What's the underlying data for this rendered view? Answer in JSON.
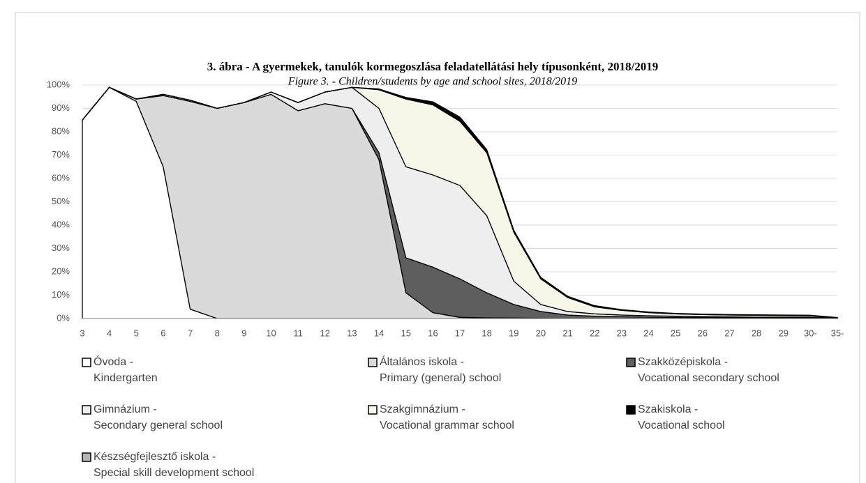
{
  "chart_data": {
    "type": "stacked_area",
    "title": "3. ábra - A gyermekek, tanulók kormegoszlása feladatellátási hely típusonként, 2018/2019",
    "subtitle": "Figure 3. - Children/students by age and school sites, 2018/2019",
    "categories": [
      "3",
      "4",
      "5",
      "6",
      "7",
      "8",
      "9",
      "10",
      "11",
      "12",
      "13",
      "14",
      "15",
      "16",
      "17",
      "18",
      "19",
      "20",
      "21",
      "22",
      "23",
      "24",
      "25",
      "26",
      "27",
      "28",
      "29",
      "30-",
      "35-"
    ],
    "ylim": [
      0,
      100
    ],
    "yticks": [
      {
        "value": 0,
        "label": "0%"
      },
      {
        "value": 10,
        "label": "10%"
      },
      {
        "value": 20,
        "label": "20%"
      },
      {
        "value": 30,
        "label": "30%"
      },
      {
        "value": 40,
        "label": "40%"
      },
      {
        "value": 50,
        "label": "50%"
      },
      {
        "value": 60,
        "label": "60%"
      },
      {
        "value": 70,
        "label": "70%"
      },
      {
        "value": 80,
        "label": "80%"
      },
      {
        "value": 90,
        "label": "90%"
      },
      {
        "value": 100,
        "label": "100%"
      }
    ],
    "grid": true,
    "series": [
      {
        "name": "Óvoda -",
        "name_en": "Kindergarten",
        "color": "#ffffff",
        "values": [
          85,
          99,
          93,
          65,
          4,
          0,
          0,
          0,
          0,
          0,
          0,
          0,
          0,
          0,
          0,
          0,
          0,
          0,
          0,
          0,
          0,
          0,
          0,
          0,
          0,
          0,
          0,
          0,
          0
        ]
      },
      {
        "name": "Általános iskola -",
        "name_en": "Primary (general) school",
        "color": "#dadada",
        "values": [
          0,
          0,
          1,
          30.5,
          89,
          90,
          92.5,
          96,
          89,
          92,
          90,
          68,
          11,
          2.5,
          0.5,
          0.3,
          0.2,
          0.1,
          0,
          0,
          0,
          0,
          0,
          0,
          0,
          0,
          0,
          0,
          0
        ]
      },
      {
        "name": "Szakközépiskola -",
        "name_en": "Vocational secondary school",
        "color": "#5e5e5e",
        "values": [
          0,
          0,
          0,
          0,
          0,
          0,
          0,
          0,
          0,
          0,
          0,
          3,
          15,
          19.5,
          16.5,
          10.7,
          5.8,
          2.9,
          1.5,
          1,
          0.8,
          0.6,
          0.5,
          0.4,
          0.4,
          0.3,
          0.3,
          0.3,
          0.1
        ]
      },
      {
        "name": "Gimnázium -",
        "name_en": "Secondary general school",
        "color": "#eeeeee",
        "values": [
          0,
          0,
          0,
          0.5,
          0.5,
          0,
          0,
          1,
          3.5,
          5,
          9,
          19,
          39,
          39.5,
          40,
          33,
          10,
          3,
          1.5,
          1,
          0.7,
          0.6,
          0.5,
          0.4,
          0.3,
          0.3,
          0.3,
          0.3,
          0.1
        ]
      },
      {
        "name": "Szakgimnázium -",
        "name_en": "Vocational grammar school",
        "color": "#f8f6e8",
        "values": [
          0,
          0,
          0,
          0,
          0,
          0,
          0,
          0,
          0,
          0,
          0,
          8,
          29,
          30,
          27.5,
          27,
          21,
          11,
          6,
          3,
          2,
          1.3,
          1,
          0.9,
          0.8,
          0.8,
          0.7,
          0.6,
          0.1
        ]
      },
      {
        "name": "Szakiskola -",
        "name_en": "Vocational school",
        "color": "#000000",
        "values": [
          0,
          0,
          0,
          0,
          0,
          0,
          0,
          0,
          0,
          0,
          0,
          0.3,
          0.5,
          1,
          1.5,
          1,
          0.6,
          0.4,
          0.3,
          0.3,
          0.2,
          0.2,
          0.1,
          0.1,
          0.1,
          0.1,
          0.1,
          0.1,
          0.1
        ]
      },
      {
        "name": "Készségfejlesztő iskola -",
        "name_en": "Special skill development school",
        "color": "#b5b5b5",
        "values": [
          0,
          0,
          0,
          0,
          0,
          0,
          0,
          0,
          0,
          0,
          0,
          0,
          0.2,
          0.3,
          0.3,
          0.3,
          0.2,
          0.2,
          0.2,
          0.2,
          0.1,
          0.1,
          0.1,
          0.1,
          0.1,
          0.1,
          0.1,
          0.1,
          0
        ]
      }
    ]
  }
}
